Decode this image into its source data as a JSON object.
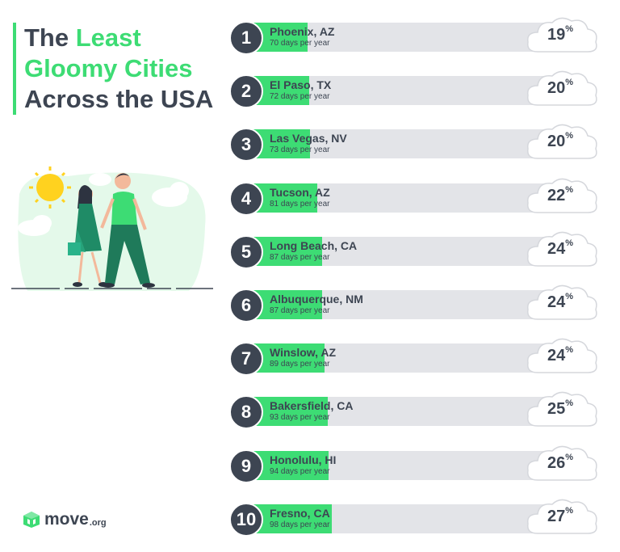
{
  "title": {
    "part1": "The ",
    "highlight": "Least Gloomy Cities",
    "part2": "Across the USA"
  },
  "logo": {
    "word": "move",
    "tld": ".org"
  },
  "colors": {
    "accent": "#3ddc74",
    "dark": "#3d4552",
    "track": "#e3e4e8"
  },
  "chart_data": {
    "type": "bar",
    "title": "The Least Gloomy Cities Across the USA",
    "ranks": [
      "1",
      "2",
      "3",
      "4",
      "5",
      "6",
      "7",
      "8",
      "9",
      "10"
    ],
    "categories": [
      "Phoenix, AZ",
      "El Paso, TX",
      "Las Vegas, NV",
      "Tucson, AZ",
      "Long Beach, CA",
      "Albuquerque, NM",
      "Winslow, AZ",
      "Bakersfield, CA",
      "Honolulu, HI",
      "Fresno, CA"
    ],
    "days_labels": [
      "70 days per year",
      "72 days per year",
      "73 days per year",
      "81 days per year",
      "87 days per year",
      "87 days per year",
      "89 days per year",
      "93 days per year",
      "94 days per year",
      "98 days per year"
    ],
    "values": [
      70,
      72,
      73,
      81,
      87,
      87,
      89,
      93,
      94,
      98
    ],
    "percent_labels": [
      "19",
      "20",
      "20",
      "22",
      "24",
      "24",
      "24",
      "25",
      "26",
      "27"
    ],
    "percent_unit": "%",
    "xlim": [
      0,
      365
    ]
  }
}
